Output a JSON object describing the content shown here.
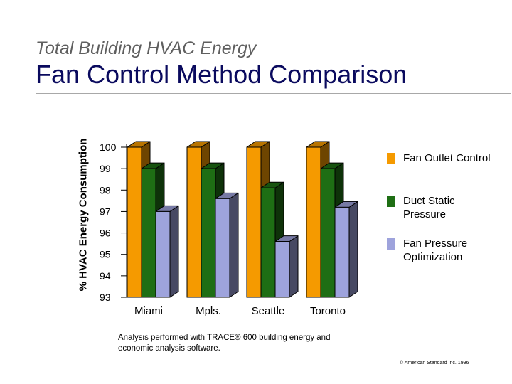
{
  "slide": {
    "subtitle": "Total Building HVAC Energy",
    "title": "Fan Control Method Comparison",
    "note": "Analysis performed with TRACE® 600 building energy and economic analysis software.",
    "copyright": "© American Standard Inc.   1996"
  },
  "chart_data": {
    "type": "bar",
    "title": "",
    "xlabel": "",
    "ylabel": "% HVAC Energy Consumption",
    "categories": [
      "Miami",
      "Mpls.",
      "Seattle",
      "Toronto"
    ],
    "ylim": [
      93,
      100
    ],
    "yticks": [
      100,
      99,
      98,
      97,
      96,
      95,
      94,
      93
    ],
    "grid": false,
    "legend_position": "right",
    "style": "3d",
    "series": [
      {
        "name": "Fan Outlet Control",
        "color": "#f59a00",
        "values": [
          100,
          100,
          100,
          100
        ]
      },
      {
        "name": "Duct Static Pressure",
        "color": "#1e6e14",
        "values": [
          99,
          99,
          98.1,
          99
        ]
      },
      {
        "name": "Fan Pressure Optimization",
        "color": "#9ea3dc",
        "values": [
          97,
          97.6,
          95.6,
          97.2
        ]
      }
    ]
  }
}
